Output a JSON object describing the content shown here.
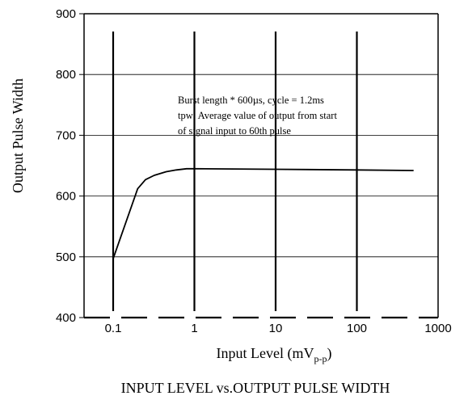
{
  "chart_data": {
    "type": "line",
    "title": "INPUT LEVEL vs.OUTPUT PULSE WIDTH",
    "ylabel": "Output Pulse Width",
    "xlabel": {
      "main": "Input Level (mV",
      "subscript": "p-p",
      "suffix": ")"
    },
    "x_scale": "log",
    "xlim": [
      0.1,
      1000
    ],
    "ylim": [
      400,
      900
    ],
    "x_ticks": [
      {
        "value": 0.1,
        "label": "0.1"
      },
      {
        "value": 1,
        "label": "1"
      },
      {
        "value": 10,
        "label": "10"
      },
      {
        "value": 100,
        "label": "100"
      },
      {
        "value": 1000,
        "label": "1000"
      }
    ],
    "y_ticks": [
      {
        "value": 400,
        "label": "400"
      },
      {
        "value": 500,
        "label": "500"
      },
      {
        "value": 600,
        "label": "600"
      },
      {
        "value": 700,
        "label": "700"
      },
      {
        "value": 800,
        "label": "800"
      },
      {
        "value": 900,
        "label": "900"
      }
    ],
    "grid": true,
    "annotation": [
      "Burst length * 600µs, cycle = 1.2ms",
      "tpw: Average value of output from start",
      "of signal input to 60th pulse"
    ],
    "series": [
      {
        "x": [
          0.1,
          0.2,
          0.25,
          0.32,
          0.45,
          0.6,
          0.8,
          1.0,
          10,
          100,
          500
        ],
        "y": [
          497,
          612,
          627,
          634,
          640,
          643,
          645,
          645,
          644,
          643,
          642
        ]
      }
    ]
  }
}
